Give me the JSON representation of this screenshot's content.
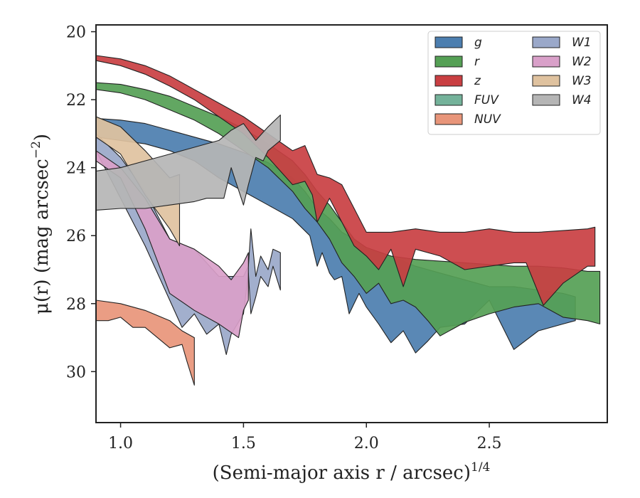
{
  "chart_data": {
    "type": "area",
    "xlabel": "(Semi-major axis r / arcsec)",
    "xlabel_superscript": "1/4",
    "ylabel": "μ(r) (mag arcsec",
    "ylabel_superscript": "−2",
    "ylabel_suffix": ")",
    "xlim": [
      0.9,
      2.98
    ],
    "ylim": [
      31.5,
      19.8
    ],
    "y_inverted": true,
    "xticks": [
      1.0,
      1.5,
      2.0,
      2.5
    ],
    "xtick_labels": [
      "1.0",
      "1.5",
      "2.0",
      "2.5"
    ],
    "yticks": [
      20,
      22,
      24,
      26,
      28,
      30
    ],
    "ytick_labels": [
      "20",
      "22",
      "24",
      "26",
      "28",
      "30"
    ],
    "grid": false,
    "legend_position": "top-right",
    "legend_columns": 2,
    "series": [
      {
        "name": "g",
        "color": "#4c7eaf",
        "upper": [
          [
            0.9,
            22.55
          ],
          [
            1.0,
            22.6
          ],
          [
            1.1,
            22.7
          ],
          [
            1.2,
            22.9
          ],
          [
            1.3,
            23.1
          ],
          [
            1.4,
            23.3
          ],
          [
            1.5,
            23.55
          ],
          [
            1.6,
            23.85
          ],
          [
            1.7,
            24.3
          ],
          [
            1.75,
            24.7
          ],
          [
            1.8,
            25.2
          ],
          [
            1.85,
            25.5
          ],
          [
            1.9,
            25.9
          ],
          [
            1.95,
            26.1
          ],
          [
            2.0,
            26.4
          ],
          [
            2.1,
            26.6
          ],
          [
            2.2,
            26.9
          ],
          [
            2.3,
            27.1
          ],
          [
            2.4,
            27.3
          ],
          [
            2.5,
            27.5
          ],
          [
            2.6,
            27.5
          ],
          [
            2.7,
            27.6
          ],
          [
            2.8,
            27.7
          ],
          [
            2.85,
            27.8
          ]
        ],
        "lower": [
          [
            2.85,
            28.5
          ],
          [
            2.8,
            28.6
          ],
          [
            2.7,
            28.8
          ],
          [
            2.6,
            29.35
          ],
          [
            2.5,
            27.9
          ],
          [
            2.4,
            28.6
          ],
          [
            2.3,
            28.7
          ],
          [
            2.25,
            29.1
          ],
          [
            2.2,
            29.45
          ],
          [
            2.15,
            28.8
          ],
          [
            2.1,
            29.15
          ],
          [
            2.05,
            28.6
          ],
          [
            2.0,
            28.1
          ],
          [
            1.97,
            27.7
          ],
          [
            1.93,
            28.3
          ],
          [
            1.9,
            27.2
          ],
          [
            1.87,
            27.3
          ],
          [
            1.85,
            27.1
          ],
          [
            1.82,
            26.5
          ],
          [
            1.8,
            26.9
          ],
          [
            1.77,
            26.0
          ],
          [
            1.7,
            25.5
          ],
          [
            1.6,
            25.1
          ],
          [
            1.5,
            24.7
          ],
          [
            1.4,
            24.3
          ],
          [
            1.3,
            23.8
          ],
          [
            1.2,
            23.5
          ],
          [
            1.1,
            23.3
          ],
          [
            1.0,
            23.2
          ],
          [
            0.9,
            23.1
          ]
        ]
      },
      {
        "name": "r",
        "color": "#55a055",
        "upper": [
          [
            0.9,
            21.5
          ],
          [
            1.0,
            21.55
          ],
          [
            1.1,
            21.7
          ],
          [
            1.2,
            21.9
          ],
          [
            1.3,
            22.2
          ],
          [
            1.4,
            22.5
          ],
          [
            1.5,
            22.85
          ],
          [
            1.6,
            23.3
          ],
          [
            1.7,
            23.8
          ],
          [
            1.75,
            24.2
          ],
          [
            1.8,
            24.7
          ],
          [
            1.85,
            25.1
          ],
          [
            1.9,
            25.6
          ],
          [
            1.95,
            26.1
          ],
          [
            2.0,
            26.35
          ],
          [
            2.1,
            26.6
          ],
          [
            2.2,
            26.7
          ],
          [
            2.3,
            26.75
          ],
          [
            2.4,
            26.8
          ],
          [
            2.5,
            26.85
          ],
          [
            2.6,
            26.9
          ],
          [
            2.7,
            26.9
          ],
          [
            2.8,
            26.95
          ],
          [
            2.9,
            27.05
          ],
          [
            2.95,
            27.05
          ]
        ],
        "lower": [
          [
            2.95,
            28.6
          ],
          [
            2.9,
            28.5
          ],
          [
            2.8,
            28.4
          ],
          [
            2.7,
            28.0
          ],
          [
            2.6,
            28.1
          ],
          [
            2.5,
            28.3
          ],
          [
            2.4,
            28.55
          ],
          [
            2.3,
            28.95
          ],
          [
            2.25,
            28.5
          ],
          [
            2.2,
            28.1
          ],
          [
            2.15,
            27.9
          ],
          [
            2.1,
            28.0
          ],
          [
            2.05,
            27.4
          ],
          [
            2.0,
            27.7
          ],
          [
            1.95,
            27.2
          ],
          [
            1.9,
            26.8
          ],
          [
            1.85,
            26.1
          ],
          [
            1.8,
            25.6
          ],
          [
            1.75,
            25.2
          ],
          [
            1.7,
            24.7
          ],
          [
            1.6,
            24.0
          ],
          [
            1.5,
            23.5
          ],
          [
            1.4,
            23.0
          ],
          [
            1.3,
            22.6
          ],
          [
            1.2,
            22.3
          ],
          [
            1.1,
            22.0
          ],
          [
            1.0,
            21.8
          ],
          [
            0.9,
            21.7
          ]
        ]
      },
      {
        "name": "z",
        "color": "#c93f42",
        "upper": [
          [
            0.9,
            20.7
          ],
          [
            1.0,
            20.8
          ],
          [
            1.1,
            21.0
          ],
          [
            1.2,
            21.3
          ],
          [
            1.3,
            21.7
          ],
          [
            1.4,
            22.1
          ],
          [
            1.5,
            22.5
          ],
          [
            1.6,
            23.0
          ],
          [
            1.7,
            23.5
          ],
          [
            1.75,
            23.35
          ],
          [
            1.8,
            24.2
          ],
          [
            1.85,
            24.3
          ],
          [
            1.9,
            24.5
          ],
          [
            1.95,
            25.2
          ],
          [
            2.0,
            25.9
          ],
          [
            2.1,
            25.9
          ],
          [
            2.2,
            25.8
          ],
          [
            2.3,
            25.9
          ],
          [
            2.4,
            25.9
          ],
          [
            2.5,
            25.8
          ],
          [
            2.6,
            25.9
          ],
          [
            2.7,
            25.9
          ],
          [
            2.8,
            25.85
          ],
          [
            2.9,
            25.8
          ],
          [
            2.93,
            25.75
          ]
        ],
        "lower": [
          [
            2.93,
            26.9
          ],
          [
            2.9,
            26.9
          ],
          [
            2.8,
            27.4
          ],
          [
            2.72,
            28.05
          ],
          [
            2.65,
            26.8
          ],
          [
            2.6,
            26.8
          ],
          [
            2.5,
            26.9
          ],
          [
            2.4,
            27.0
          ],
          [
            2.3,
            26.6
          ],
          [
            2.2,
            26.4
          ],
          [
            2.15,
            27.5
          ],
          [
            2.1,
            26.4
          ],
          [
            2.05,
            27.0
          ],
          [
            2.0,
            26.6
          ],
          [
            1.95,
            26.3
          ],
          [
            1.9,
            25.6
          ],
          [
            1.85,
            24.9
          ],
          [
            1.8,
            25.6
          ],
          [
            1.78,
            24.8
          ],
          [
            1.75,
            24.4
          ],
          [
            1.7,
            24.5
          ],
          [
            1.6,
            23.7
          ],
          [
            1.5,
            23.0
          ],
          [
            1.4,
            22.5
          ],
          [
            1.3,
            22.0
          ],
          [
            1.2,
            21.6
          ],
          [
            1.1,
            21.25
          ],
          [
            1.0,
            21.0
          ],
          [
            0.9,
            20.85
          ]
        ]
      },
      {
        "name": "FUV",
        "color": "#74b29a",
        "upper": [],
        "lower": []
      },
      {
        "name": "NUV",
        "color": "#e8957a",
        "upper": [
          [
            0.9,
            27.9
          ],
          [
            1.0,
            28.0
          ],
          [
            1.1,
            28.2
          ],
          [
            1.2,
            28.5
          ],
          [
            1.25,
            28.8
          ],
          [
            1.3,
            29.0
          ]
        ],
        "lower": [
          [
            1.3,
            30.4
          ],
          [
            1.27,
            29.7
          ],
          [
            1.25,
            29.2
          ],
          [
            1.2,
            29.3
          ],
          [
            1.15,
            29.0
          ],
          [
            1.1,
            28.7
          ],
          [
            1.05,
            28.7
          ],
          [
            1.0,
            28.4
          ],
          [
            0.95,
            28.5
          ],
          [
            0.9,
            28.5
          ]
        ]
      },
      {
        "name": "W1",
        "color": "#9aa8c9",
        "upper": [
          [
            0.9,
            23.0
          ],
          [
            1.0,
            23.7
          ],
          [
            1.1,
            24.7
          ],
          [
            1.2,
            26.1
          ],
          [
            1.3,
            26.4
          ],
          [
            1.4,
            27.2
          ],
          [
            1.5,
            27.2
          ],
          [
            1.52,
            26.9
          ],
          [
            1.53,
            25.8
          ],
          [
            1.55,
            27.2
          ],
          [
            1.57,
            26.6
          ],
          [
            1.6,
            27.0
          ],
          [
            1.62,
            26.4
          ],
          [
            1.65,
            26.5
          ]
        ],
        "lower": [
          [
            1.65,
            27.6
          ],
          [
            1.62,
            26.9
          ],
          [
            1.6,
            27.5
          ],
          [
            1.57,
            27.2
          ],
          [
            1.55,
            27.8
          ],
          [
            1.53,
            28.3
          ],
          [
            1.52,
            27.1
          ],
          [
            1.5,
            28.3
          ],
          [
            1.45,
            28.9
          ],
          [
            1.43,
            29.5
          ],
          [
            1.4,
            28.6
          ],
          [
            1.35,
            28.9
          ],
          [
            1.3,
            28.3
          ],
          [
            1.25,
            28.7
          ],
          [
            1.2,
            27.9
          ],
          [
            1.1,
            26.3
          ],
          [
            1.0,
            24.9
          ],
          [
            0.9,
            23.5
          ]
        ]
      },
      {
        "name": "W2",
        "color": "#d9a0c9",
        "upper": [
          [
            0.9,
            23.5
          ],
          [
            1.0,
            24.0
          ],
          [
            1.1,
            24.9
          ],
          [
            1.2,
            26.1
          ],
          [
            1.3,
            26.4
          ],
          [
            1.4,
            26.9
          ],
          [
            1.45,
            27.3
          ],
          [
            1.5,
            26.8
          ],
          [
            1.52,
            26.5
          ]
        ],
        "lower": [
          [
            1.52,
            27.9
          ],
          [
            1.5,
            28.2
          ],
          [
            1.48,
            29.0
          ],
          [
            1.4,
            28.6
          ],
          [
            1.3,
            28.2
          ],
          [
            1.2,
            27.7
          ],
          [
            1.1,
            25.8
          ],
          [
            1.0,
            24.3
          ],
          [
            0.9,
            23.8
          ]
        ]
      },
      {
        "name": "W3",
        "color": "#dfc29f",
        "upper": [
          [
            0.9,
            22.5
          ],
          [
            1.0,
            22.8
          ],
          [
            1.1,
            23.5
          ],
          [
            1.2,
            24.3
          ],
          [
            1.24,
            24.2
          ]
        ],
        "lower": [
          [
            1.24,
            26.3
          ],
          [
            1.2,
            25.8
          ],
          [
            1.1,
            24.8
          ],
          [
            1.0,
            23.6
          ],
          [
            0.9,
            23.1
          ]
        ]
      },
      {
        "name": "W4",
        "color": "#b5b5b5",
        "upper": [
          [
            0.9,
            24.1
          ],
          [
            1.0,
            24.0
          ],
          [
            1.1,
            23.8
          ],
          [
            1.2,
            23.6
          ],
          [
            1.3,
            23.4
          ],
          [
            1.4,
            23.2
          ],
          [
            1.45,
            22.9
          ],
          [
            1.5,
            22.7
          ],
          [
            1.55,
            23.2
          ],
          [
            1.6,
            22.8
          ],
          [
            1.65,
            22.45
          ]
        ],
        "lower": [
          [
            1.65,
            23.2
          ],
          [
            1.6,
            23.5
          ],
          [
            1.58,
            23.8
          ],
          [
            1.55,
            23.7
          ],
          [
            1.52,
            24.5
          ],
          [
            1.5,
            25.1
          ],
          [
            1.45,
            24.0
          ],
          [
            1.42,
            24.9
          ],
          [
            1.35,
            24.9
          ],
          [
            1.3,
            25.0
          ],
          [
            1.2,
            25.1
          ],
          [
            1.1,
            25.2
          ],
          [
            1.0,
            25.2
          ],
          [
            0.9,
            25.25
          ]
        ]
      }
    ]
  }
}
